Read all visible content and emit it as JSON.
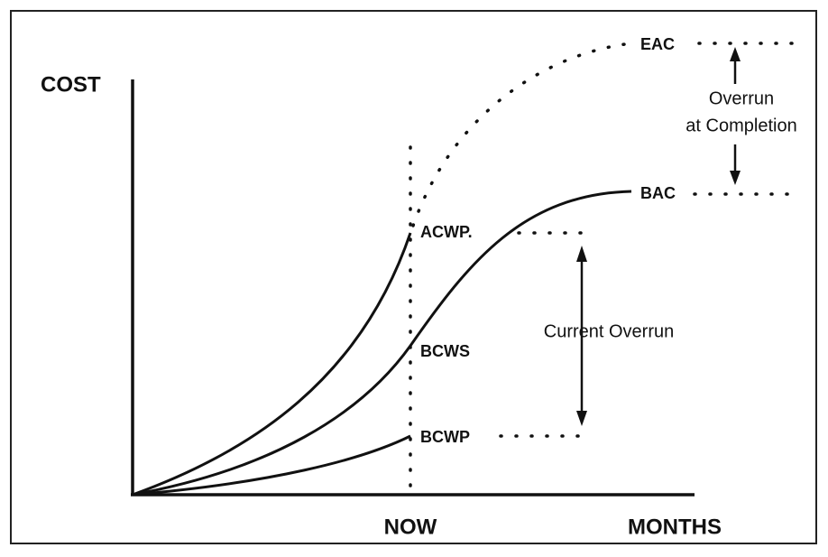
{
  "axes": {
    "y_label": "COST",
    "x_label": "MONTHS",
    "now": "NOW"
  },
  "curves": {
    "acwp": "ACWP.",
    "bcws": "BCWS",
    "bcwp": "BCWP",
    "eac": "EAC",
    "bac": "BAC"
  },
  "annotations": {
    "overrun_at_completion": [
      "Overrun",
      "at Completion"
    ],
    "current_overrun": "Current Overrun"
  }
}
